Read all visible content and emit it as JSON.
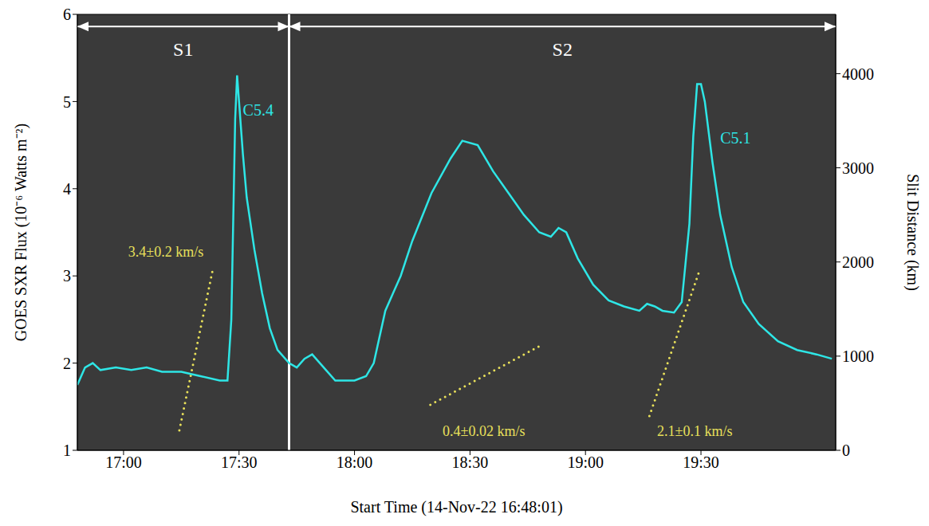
{
  "chart_data": {
    "type": "line",
    "xlabel": "Start Time (14-Nov-22 16:48:01)",
    "ylabel": "GOES SXR Flux (10⁻⁶ Watts m⁻²)",
    "y2label": "Slit Distance (km)",
    "xlim": [
      1008,
      1205
    ],
    "xticks": [
      {
        "value": 1020,
        "label": "17:00"
      },
      {
        "value": 1050,
        "label": "17:30"
      },
      {
        "value": 1080,
        "label": "18:00"
      },
      {
        "value": 1110,
        "label": "18:30"
      },
      {
        "value": 1140,
        "label": "19:00"
      },
      {
        "value": 1170,
        "label": "19:30"
      }
    ],
    "ylim": [
      1,
      6
    ],
    "yticks": [
      1,
      2,
      3,
      4,
      5,
      6
    ],
    "y2lim": [
      0,
      4630
    ],
    "y2ticks": [
      0,
      1000,
      2000,
      3000,
      4000
    ],
    "series": [
      {
        "color": "#2ee6e6",
        "line_style": "solid",
        "x": [
          1008,
          1010,
          1012,
          1014,
          1018,
          1022,
          1026,
          1030,
          1035,
          1040,
          1045,
          1047,
          1048,
          1049,
          1049.5,
          1050,
          1051,
          1052,
          1054,
          1056,
          1058,
          1060,
          1063,
          1065,
          1067,
          1069,
          1072,
          1075,
          1080,
          1083,
          1085,
          1088,
          1090,
          1092,
          1095,
          1100,
          1105,
          1108,
          1112,
          1116,
          1120,
          1124,
          1128,
          1131,
          1133,
          1135,
          1138,
          1142,
          1146,
          1150,
          1154,
          1156,
          1158,
          1160,
          1163,
          1165,
          1167,
          1168,
          1169,
          1170,
          1171,
          1173,
          1175,
          1178,
          1181,
          1185,
          1190,
          1195,
          1200,
          1204
        ],
        "values": [
          1.75,
          1.95,
          2.0,
          1.92,
          1.95,
          1.92,
          1.95,
          1.9,
          1.9,
          1.85,
          1.8,
          1.8,
          2.5,
          4.8,
          5.3,
          5.0,
          4.4,
          3.9,
          3.3,
          2.8,
          2.4,
          2.15,
          2.0,
          1.95,
          2.05,
          2.1,
          1.95,
          1.8,
          1.8,
          1.85,
          2.0,
          2.6,
          2.8,
          3.0,
          3.4,
          3.95,
          4.35,
          4.55,
          4.5,
          4.2,
          3.95,
          3.7,
          3.5,
          3.45,
          3.55,
          3.5,
          3.2,
          2.9,
          2.72,
          2.65,
          2.6,
          2.68,
          2.65,
          2.6,
          2.58,
          2.7,
          3.6,
          4.6,
          5.2,
          5.2,
          5.0,
          4.3,
          3.7,
          3.1,
          2.7,
          2.45,
          2.25,
          2.15,
          2.1,
          2.05
        ]
      }
    ],
    "fits": [
      {
        "axis": "y2",
        "color": "#e8e05a",
        "line_style": "dotted",
        "label": "3.4±0.2 km/s",
        "x": [
          1034.5,
          1043.2
        ],
        "values": [
          212,
          1924
        ],
        "label_x": 1031,
        "label_y": 2090
      },
      {
        "axis": "y2",
        "color": "#e8e05a",
        "line_style": "dotted",
        "label": "0.4±0.02 km/s",
        "x": [
          1099.7,
          1129
        ],
        "values": [
          483,
          1127
        ],
        "label_x": 1113.6,
        "label_y": 186
      },
      {
        "axis": "y2",
        "color": "#e8e05a",
        "line_style": "dotted",
        "label": "2.1±0.1 km/s",
        "x": [
          1156.6,
          1169.6
        ],
        "values": [
          364,
          1907
        ],
        "label_x": 1168.4,
        "label_y": 186
      }
    ],
    "flares": [
      {
        "label": "C5.4",
        "x": 1051,
        "y": 4.88,
        "color": "#2ee6e6"
      },
      {
        "label": "C5.1",
        "x": 1175,
        "y": 4.56,
        "color": "#2ee6e6"
      }
    ],
    "regions": [
      {
        "label": "S1",
        "start": 1008,
        "end": 1063
      },
      {
        "label": "S2",
        "start": 1063,
        "end": 1205
      }
    ],
    "divider": 1063
  }
}
